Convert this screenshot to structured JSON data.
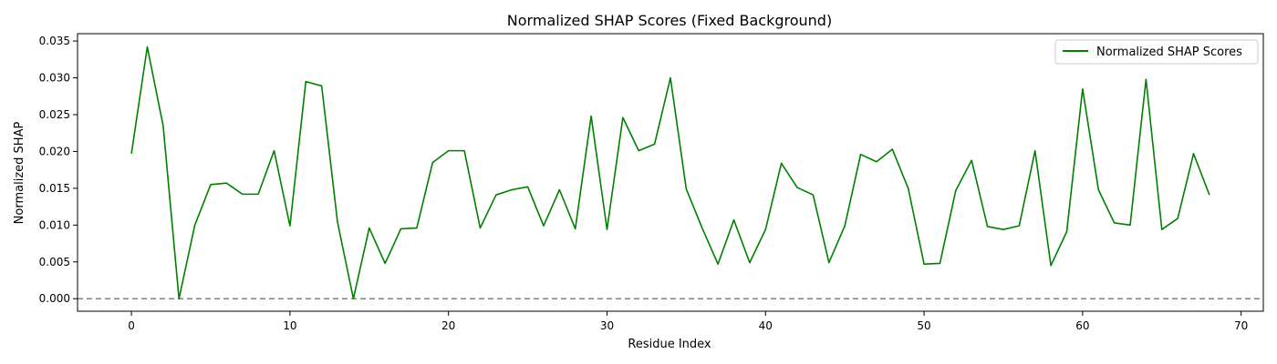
{
  "chart_data": {
    "type": "line",
    "title": "Normalized SHAP Scores (Fixed Background)",
    "xlabel": "Residue Index",
    "ylabel": "Normalized SHAP",
    "xlim": [
      -3.4,
      71.4
    ],
    "ylim": [
      -0.0017,
      0.036
    ],
    "x_ticks": [
      0,
      10,
      20,
      30,
      40,
      50,
      60,
      70
    ],
    "x_tick_labels": [
      "0",
      "10",
      "20",
      "30",
      "40",
      "50",
      "60",
      "70"
    ],
    "y_ticks": [
      0.0,
      0.005,
      0.01,
      0.015,
      0.02,
      0.025,
      0.03,
      0.035
    ],
    "y_tick_labels": [
      "0.000",
      "0.005",
      "0.010",
      "0.015",
      "0.020",
      "0.025",
      "0.030",
      "0.035"
    ],
    "grid": false,
    "legend_position": "top-right",
    "reference_line": {
      "y": 0.0,
      "style": "dashed",
      "color": "#808080"
    },
    "series": [
      {
        "name": "Normalized SHAP Scores",
        "color": "#008000",
        "x": [
          0,
          1,
          2,
          3,
          4,
          5,
          6,
          7,
          8,
          9,
          10,
          11,
          12,
          13,
          14,
          15,
          16,
          17,
          18,
          19,
          20,
          21,
          22,
          23,
          24,
          25,
          26,
          27,
          28,
          29,
          30,
          31,
          32,
          33,
          34,
          35,
          36,
          37,
          38,
          39,
          40,
          41,
          42,
          43,
          44,
          45,
          46,
          47,
          48,
          49,
          50,
          51,
          52,
          53,
          54,
          55,
          56,
          57,
          58,
          59,
          60,
          61,
          62,
          63,
          64,
          65,
          66,
          67,
          68
        ],
        "values": [
          0.0197,
          0.0342,
          0.0235,
          0.0,
          0.01,
          0.0155,
          0.0157,
          0.0142,
          0.0142,
          0.0201,
          0.0099,
          0.0295,
          0.0289,
          0.0104,
          0.0,
          0.0096,
          0.0048,
          0.0095,
          0.0096,
          0.0185,
          0.0201,
          0.0201,
          0.0096,
          0.0141,
          0.0148,
          0.0152,
          0.0099,
          0.0148,
          0.0095,
          0.0248,
          0.0094,
          0.0246,
          0.0201,
          0.021,
          0.03,
          0.0149,
          0.0096,
          0.0047,
          0.0107,
          0.0049,
          0.0094,
          0.0184,
          0.0151,
          0.0141,
          0.0049,
          0.0099,
          0.0196,
          0.0186,
          0.0203,
          0.015,
          0.0047,
          0.0048,
          0.0147,
          0.0188,
          0.0098,
          0.0094,
          0.0099,
          0.0201,
          0.0045,
          0.0091,
          0.0285,
          0.0148,
          0.0103,
          0.01,
          0.0298,
          0.0094,
          0.0109,
          0.0197,
          0.0141
        ]
      }
    ]
  }
}
